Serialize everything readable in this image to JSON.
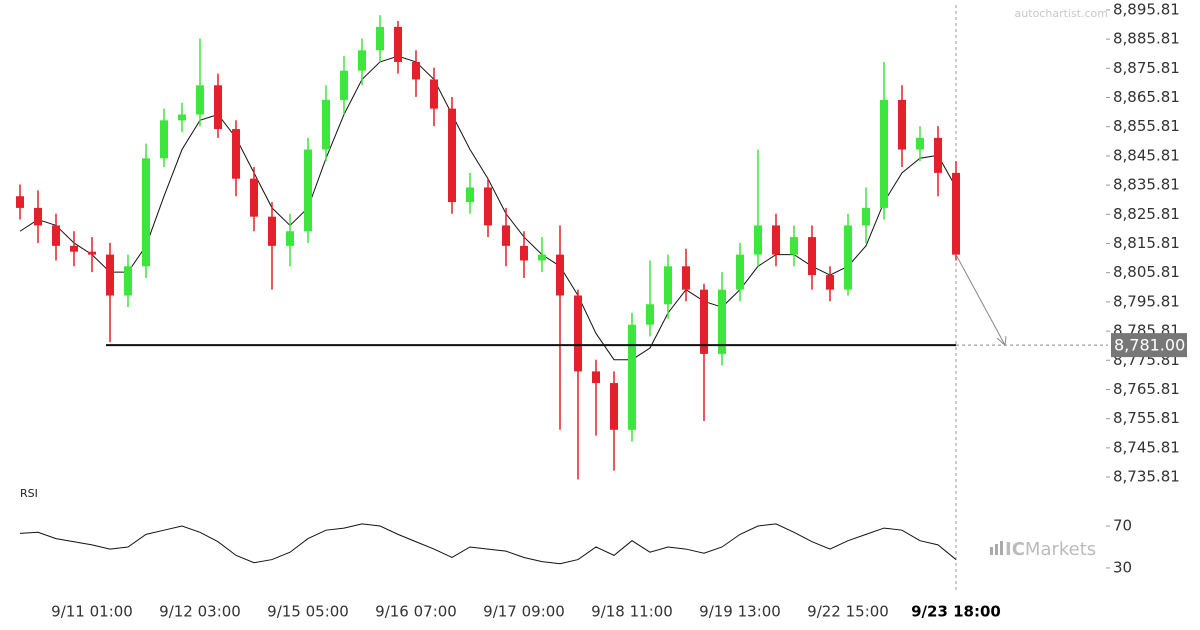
{
  "chart_data": [
    {
      "type": "candlestick",
      "watermark": "autochartist.com",
      "categories": [
        null,
        null,
        null,
        null,
        "9/11 01:00",
        null,
        null,
        null,
        null,
        null,
        "9/12 03:00",
        null,
        null,
        null,
        null,
        null,
        "9/15 05:00",
        null,
        null,
        null,
        null,
        null,
        "9/16 07:00",
        null,
        null,
        null,
        null,
        null,
        "9/17 09:00",
        null,
        null,
        null,
        null,
        null,
        "9/18 11:00",
        null,
        null,
        null,
        null,
        null,
        "9/19 13:00",
        null,
        null,
        null,
        null,
        null,
        "9/22 15:00",
        null,
        null,
        null,
        null,
        null,
        "9/23 18:00"
      ],
      "open": [
        8832,
        8828,
        8822,
        8815,
        8813,
        8812,
        8798,
        8808,
        8845,
        8858,
        8860,
        8870,
        8855,
        8838,
        8825,
        8815,
        8820,
        8848,
        8865,
        8875,
        8882,
        8890,
        8878,
        8872,
        8862,
        8830,
        8835,
        8822,
        8815,
        8810,
        8812,
        8798,
        8772,
        8768,
        8752,
        8788,
        8795,
        8808,
        8800,
        8778,
        8800,
        8812,
        8822,
        8812,
        8818,
        8805,
        8800,
        8822,
        8828,
        8865,
        8848,
        8852,
        8840
      ],
      "high": [
        8836,
        8834,
        8826,
        8820,
        8818,
        8816,
        8812,
        8850,
        8862,
        8864,
        8886,
        8874,
        8858,
        8842,
        8830,
        8826,
        8852,
        8870,
        8880,
        8886,
        8894,
        8892,
        8882,
        8876,
        8866,
        8840,
        8838,
        8828,
        8820,
        8818,
        8822,
        8800,
        8776,
        8772,
        8792,
        8810,
        8812,
        8814,
        8802,
        8806,
        8816,
        8848,
        8826,
        8822,
        8822,
        8808,
        8826,
        8835,
        8878,
        8870,
        8856,
        8856,
        8844
      ],
      "low": [
        8824,
        8816,
        8810,
        8808,
        8806,
        8782,
        8794,
        8804,
        8842,
        8854,
        8856,
        8852,
        8832,
        8820,
        8800,
        8808,
        8816,
        8844,
        8860,
        8870,
        8878,
        8874,
        8866,
        8856,
        8826,
        8826,
        8818,
        8808,
        8804,
        8806,
        8752,
        8735,
        8750,
        8738,
        8748,
        8784,
        8790,
        8796,
        8755,
        8774,
        8796,
        8808,
        8808,
        8808,
        8800,
        8796,
        8798,
        8816,
        8824,
        8842,
        8844,
        8832,
        8810
      ],
      "close": [
        8828,
        8822,
        8815,
        8813,
        8812,
        8798,
        8808,
        8845,
        8858,
        8860,
        8870,
        8855,
        8838,
        8825,
        8815,
        8820,
        8848,
        8865,
        8875,
        8882,
        8890,
        8878,
        8872,
        8862,
        8830,
        8835,
        8822,
        8815,
        8810,
        8812,
        8798,
        8772,
        8768,
        8752,
        8788,
        8795,
        8808,
        8800,
        8778,
        8800,
        8812,
        8822,
        8812,
        8818,
        8805,
        8800,
        8822,
        8828,
        8865,
        8848,
        8852,
        8840,
        8812
      ],
      "moving_average": [
        8820,
        8824,
        8822,
        8816,
        8812,
        8806,
        8806,
        8815,
        8832,
        8848,
        8858,
        8860,
        8852,
        8840,
        8828,
        8822,
        8828,
        8845,
        8860,
        8872,
        8878,
        8880,
        8878,
        8872,
        8860,
        8848,
        8838,
        8826,
        8818,
        8812,
        8808,
        8798,
        8785,
        8776,
        8776,
        8780,
        8792,
        8800,
        8796,
        8794,
        8800,
        8808,
        8812,
        8812,
        8808,
        8805,
        8808,
        8815,
        8830,
        8840,
        8845,
        8846,
        8835
      ],
      "up_color": "#3ce63c",
      "down_color": "#e3202b",
      "level": {
        "value": 8781,
        "label": "8,781.00"
      },
      "ylim": [
        8734.8,
        8897.5
      ],
      "yticks": [
        {
          "value": 8735.81,
          "label": "8,735.81"
        },
        {
          "value": 8745.81,
          "label": "8,745.81"
        },
        {
          "value": 8755.81,
          "label": "8,755.81"
        },
        {
          "value": 8765.81,
          "label": "8,765.81"
        },
        {
          "value": 8775.81,
          "label": "8,775.81"
        },
        {
          "value": 8785.81,
          "label": "8,785.81"
        },
        {
          "value": 8795.81,
          "label": "8,795.81"
        },
        {
          "value": 8805.81,
          "label": "8,805.81"
        },
        {
          "value": 8815.81,
          "label": "8,815.81"
        },
        {
          "value": 8825.81,
          "label": "8,825.81"
        },
        {
          "value": 8835.81,
          "label": "8,835.81"
        },
        {
          "value": 8845.81,
          "label": "8,845.81"
        },
        {
          "value": 8855.81,
          "label": "8,855.81"
        },
        {
          "value": 8865.81,
          "label": "8,865.81"
        },
        {
          "value": 8875.81,
          "label": "8,875.81"
        },
        {
          "value": 8885.81,
          "label": "8,885.81"
        },
        {
          "value": 8895.81,
          "label": "8,895.81"
        }
      ]
    },
    {
      "type": "line",
      "title": "RSI",
      "values": [
        63,
        64,
        58,
        55,
        52,
        48,
        50,
        62,
        66,
        70,
        64,
        55,
        42,
        35,
        38,
        45,
        58,
        66,
        68,
        72,
        70,
        62,
        55,
        48,
        40,
        50,
        48,
        46,
        40,
        36,
        34,
        38,
        50,
        42,
        56,
        45,
        50,
        48,
        44,
        50,
        62,
        70,
        72,
        64,
        55,
        48,
        56,
        62,
        68,
        66,
        56,
        52,
        38
      ],
      "ylim": [
        9,
        90
      ],
      "yticks": [
        70,
        30
      ],
      "color": "#111",
      "logo": [
        "IC",
        "Markets"
      ]
    }
  ]
}
